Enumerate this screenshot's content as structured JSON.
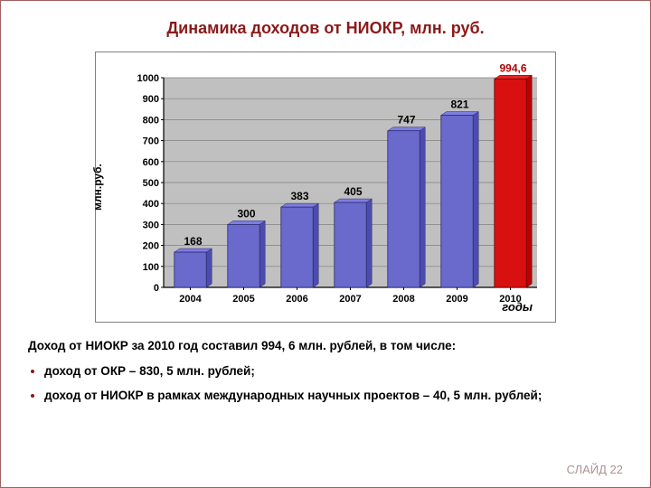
{
  "title": "Динамика доходов от НИОКР, млн. руб.",
  "chart": {
    "type": "bar",
    "categories": [
      "2004",
      "2005",
      "2006",
      "2007",
      "2008",
      "2009",
      "2010"
    ],
    "values": [
      168,
      300,
      383,
      405,
      747,
      821,
      994.6
    ],
    "value_labels": [
      "168",
      "300",
      "383",
      "405",
      "747",
      "821",
      "994,6"
    ],
    "bar_colors": [
      "#6a6acc",
      "#6a6acc",
      "#6a6acc",
      "#6a6acc",
      "#6a6acc",
      "#6a6acc",
      "#d81010"
    ],
    "edge_color": "#2a2a70",
    "highlight_edge": "#700000",
    "ylim": [
      0,
      1000
    ],
    "ytick_step": 100,
    "yticks": [
      0,
      100,
      200,
      300,
      400,
      500,
      600,
      700,
      800,
      900,
      1000
    ],
    "xlabel_right": "годы",
    "ylabel": "млн.руб.",
    "grid_color": "#808080",
    "bg_color": "#c0c0c0",
    "label_font_size": 12,
    "tick_font_size": 11,
    "value_font_size": 12,
    "bar_width": 0.6,
    "border_color": "#808080"
  },
  "body_text": {
    "lead": "Доход от НИОКР за 2010 год составил 994, 6 млн. рублей, в том числе:",
    "bullets": [
      "доход от ОКР – 830, 5 млн. рублей;",
      "доход от НИОКР в рамках международных научных проектов – 40, 5 млн. рублей;"
    ]
  },
  "footer": "СЛАЙД 22"
}
